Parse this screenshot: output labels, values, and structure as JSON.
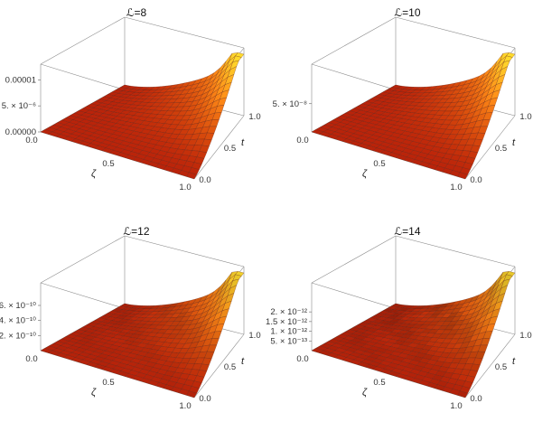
{
  "chart_data": [
    {
      "type": "surface3d",
      "title": "ℒ=8",
      "xlabel": "ζ",
      "ylabel": "t",
      "xlim": [
        0.0,
        1.0
      ],
      "ylim": [
        0.0,
        1.0
      ],
      "xticks": [
        "0.0",
        "0.5",
        "1.0"
      ],
      "yticks": [
        "0.0",
        "0.5",
        "1.0"
      ],
      "zlim": [
        0,
        1.3e-05
      ],
      "zticks": [
        {
          "value": 0,
          "label": "0.00000"
        },
        {
          "value": 5e-06,
          "label": "5. × 10⁻⁶"
        },
        {
          "value": 1e-05,
          "label": "0.00001"
        }
      ],
      "noise": 0.0
    },
    {
      "type": "surface3d",
      "title": "ℒ=10",
      "xlabel": "ζ",
      "ylabel": "t",
      "xlim": [
        0.0,
        1.0
      ],
      "ylim": [
        0.0,
        1.0
      ],
      "xticks": [
        "0.0",
        "0.5",
        "1.0"
      ],
      "yticks": [
        "0.0",
        "0.5",
        "1.0"
      ],
      "zlim": [
        0,
        1.2e-07
      ],
      "zticks": [
        {
          "value": 5e-08,
          "label": "5. × 10⁻⁸"
        }
      ],
      "noise": 0.0
    },
    {
      "type": "surface3d",
      "title": "ℒ=12",
      "xlabel": "ζ",
      "ylabel": "t",
      "xlim": [
        0.0,
        1.0
      ],
      "ylim": [
        0.0,
        1.0
      ],
      "xticks": [
        "0.0",
        "0.5",
        "1.0"
      ],
      "yticks": [
        "0.0",
        "0.5",
        "1.0"
      ],
      "zlim": [
        0,
        9e-10
      ],
      "zticks": [
        {
          "value": 2e-10,
          "label": "2. × 10⁻¹⁰"
        },
        {
          "value": 4e-10,
          "label": "4. × 10⁻¹⁰"
        },
        {
          "value": 6e-10,
          "label": "6. × 10⁻¹⁰"
        }
      ],
      "noise": 0.35
    },
    {
      "type": "surface3d",
      "title": "ℒ=14",
      "xlabel": "ζ",
      "ylabel": "t",
      "xlim": [
        0.0,
        1.0
      ],
      "ylim": [
        0.0,
        1.0
      ],
      "xticks": [
        "0.0",
        "0.5",
        "1.0"
      ],
      "yticks": [
        "0.0",
        "0.5",
        "1.0"
      ],
      "zlim": [
        0,
        3.5e-12
      ],
      "zticks": [
        {
          "value": 5e-13,
          "label": "5. × 10⁻¹³"
        },
        {
          "value": 1e-12,
          "label": "1. × 10⁻¹²"
        },
        {
          "value": 1.5e-12,
          "label": "1.5 × 10⁻¹²"
        },
        {
          "value": 2e-12,
          "label": "2. × 10⁻¹²"
        }
      ],
      "noise": 0.55
    }
  ]
}
